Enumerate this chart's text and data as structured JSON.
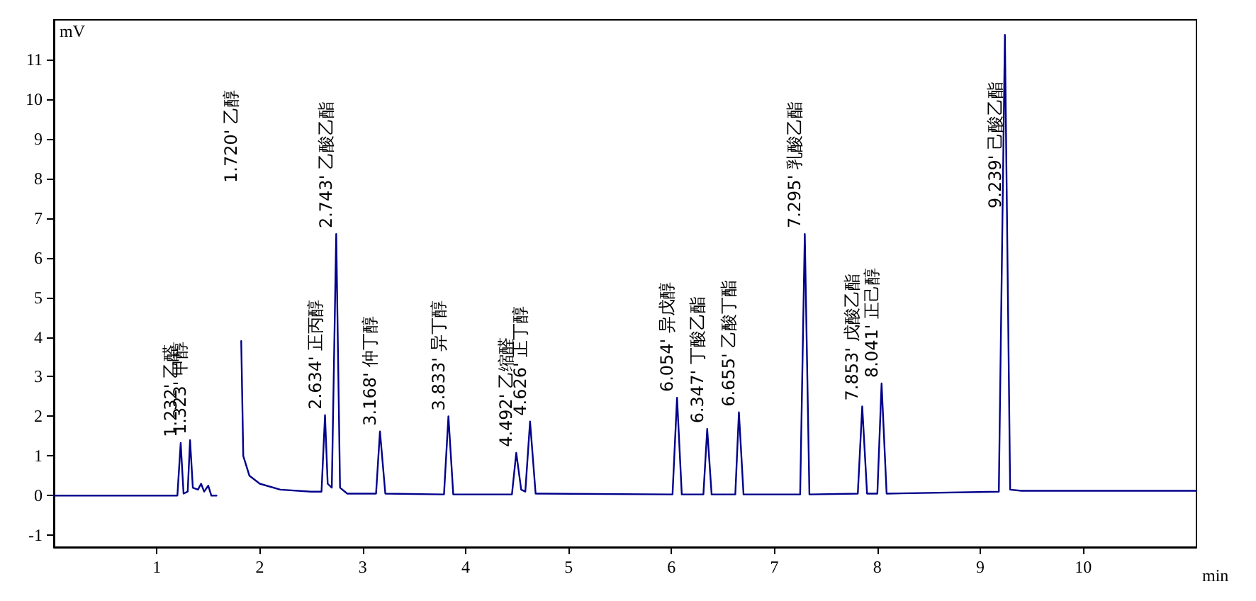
{
  "chart_data": {
    "type": "line",
    "xlabel": "min",
    "ylabel": "mV",
    "xlim": [
      0,
      11.1
    ],
    "xticks": [
      1,
      2,
      3,
      4,
      5,
      6,
      7,
      8,
      9,
      10
    ],
    "ylim": [
      -1.3,
      12
    ],
    "yticks": [
      -1,
      0,
      1,
      2,
      3,
      4,
      5,
      6,
      7,
      8,
      9,
      10,
      11
    ],
    "marker": "none",
    "line_style": "solid",
    "grid": false,
    "series": [
      {
        "color": "#00008b",
        "x": [
          0,
          1.2,
          1.232,
          1.26,
          1.3,
          1.323,
          1.35,
          1.4,
          1.43,
          1.46,
          1.5,
          1.53,
          1.58,
          1.6,
          1.8,
          1.82,
          1.84,
          1.9,
          2.0,
          2.2,
          2.5,
          2.6,
          2.634,
          2.66,
          2.7,
          2.743,
          2.78,
          2.85,
          3.13,
          3.168,
          3.22,
          3.79,
          3.833,
          3.88,
          4.45,
          4.492,
          4.54,
          4.58,
          4.626,
          4.68,
          6.01,
          6.054,
          6.1,
          6.31,
          6.347,
          6.39,
          6.62,
          6.655,
          6.7,
          7.25,
          7.295,
          7.34,
          7.81,
          7.853,
          7.9,
          8.0,
          8.041,
          8.09,
          9.18,
          9.239,
          9.29,
          9.4,
          11.1
        ],
        "values": [
          0,
          0,
          1.33,
          0.05,
          0.1,
          1.4,
          0.2,
          0.15,
          0.3,
          0.1,
          0.25,
          0,
          0,
          null,
          null,
          3.9,
          1.0,
          0.5,
          0.3,
          0.15,
          0.1,
          0.1,
          2.03,
          0.3,
          0.2,
          6.6,
          0.2,
          0.05,
          0.05,
          1.62,
          0.05,
          0.03,
          2.0,
          0.03,
          0.03,
          1.08,
          0.15,
          0.1,
          1.87,
          0.05,
          0.03,
          2.47,
          0.03,
          0.03,
          1.68,
          0.03,
          0.03,
          2.1,
          0.03,
          0.03,
          6.6,
          0.03,
          0.05,
          2.25,
          0.05,
          0.05,
          2.83,
          0.05,
          0.1,
          11.62,
          0.15,
          0.12,
          0.12
        ]
      }
    ],
    "annotations": [
      {
        "text": "1.232' 乙醛",
        "x": 1.232,
        "y": 1.33
      },
      {
        "text": "1.323' 甲醇",
        "x": 1.323,
        "y": 1.4
      },
      "1.720' 乙醇",
      {
        "text": "2.634' 正丙醇",
        "x": 2.634,
        "y": 2.03
      },
      {
        "text": "2.743' 乙酸乙酯",
        "x": 2.743,
        "y": 6.6
      },
      {
        "text": "3.168' 仲丁醇",
        "x": 3.168,
        "y": 1.62
      },
      {
        "text": "3.833' 异丁醇",
        "x": 3.833,
        "y": 2.0
      },
      {
        "text": "4.492' 乙缩醛",
        "x": 4.492,
        "y": 1.08
      },
      {
        "text": "4.626' 正丁醇",
        "x": 4.626,
        "y": 1.87
      },
      {
        "text": "6.054' 异戊醇",
        "x": 6.054,
        "y": 2.47
      },
      {
        "text": "6.347' 丁酸乙酯",
        "x": 6.347,
        "y": 1.68
      },
      {
        "text": "6.655' 乙酸丁酯",
        "x": 6.655,
        "y": 2.1
      },
      {
        "text": "7.295' 乳酸乙酯",
        "x": 7.295,
        "y": 6.6
      },
      {
        "text": "7.853' 戊酸乙酯",
        "x": 7.853,
        "y": 2.25
      },
      {
        "text": "8.041' 正己醇",
        "x": 8.041,
        "y": 2.83
      },
      {
        "text": "9.239' 己酸乙酯",
        "x": 9.239,
        "y": 11.62
      }
    ]
  }
}
